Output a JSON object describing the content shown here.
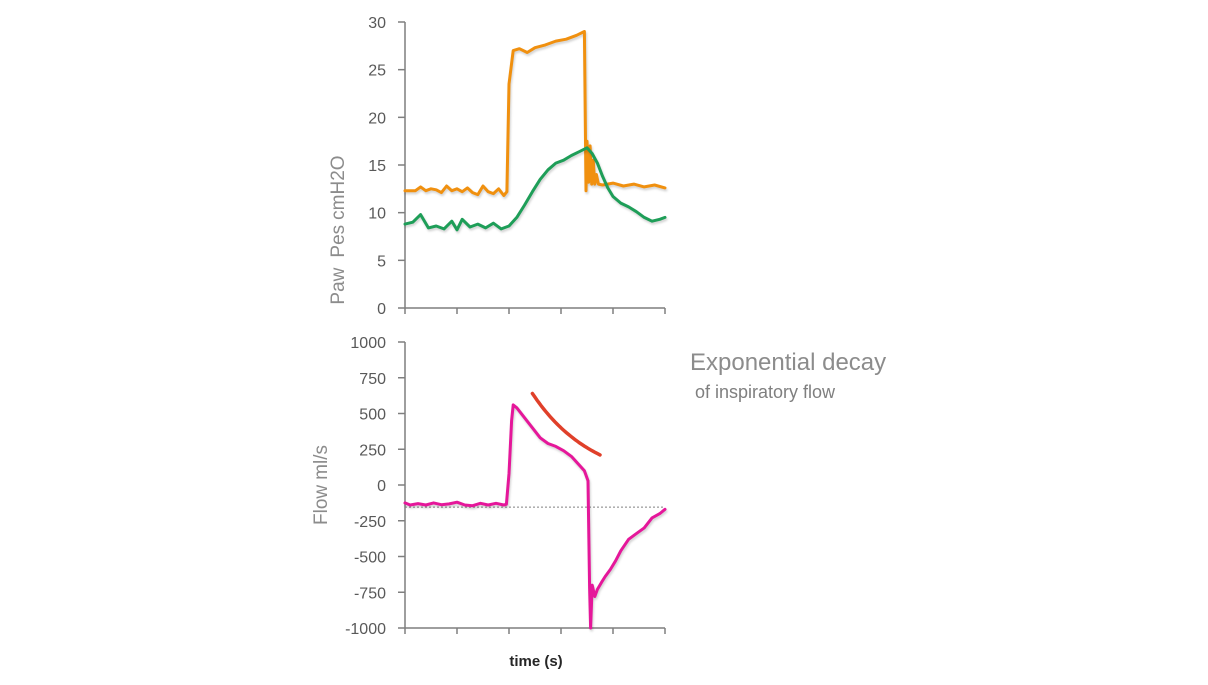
{
  "colors": {
    "paw": "#f0900f",
    "pes": "#1e9e58",
    "flow": "#e5179a",
    "decay": "#e0402a",
    "axis": "#7f7f7f",
    "baseline": "#808080"
  },
  "chart_data": [
    {
      "type": "line",
      "title": "",
      "ylabel": "Paw  Pes cmH2O",
      "ylabel_parts": [
        "Paw",
        "Pes",
        "cmH2O"
      ],
      "xlabel": "",
      "ylim": [
        0,
        30
      ],
      "yticks": [
        "0",
        "5",
        "10",
        "15",
        "20",
        "25",
        "30"
      ],
      "xlim": [
        0,
        5
      ],
      "x_tick_count": 5,
      "grid": false,
      "series": [
        {
          "key": "paw",
          "x": [
            0,
            0.2,
            0.3,
            0.4,
            0.5,
            0.6,
            0.7,
            0.8,
            0.9,
            1.0,
            1.1,
            1.2,
            1.3,
            1.4,
            1.5,
            1.6,
            1.7,
            1.8,
            1.9,
            1.96,
            2.0,
            2.08,
            2.2,
            2.35,
            2.5,
            2.7,
            2.9,
            3.1,
            3.3,
            3.45,
            3.48,
            3.5,
            3.53,
            3.56,
            3.59,
            3.62,
            3.65,
            3.68,
            3.72,
            3.8,
            4.0,
            4.2,
            4.4,
            4.6,
            4.8,
            5.0
          ],
          "y": [
            12.3,
            12.3,
            12.7,
            12.3,
            12.5,
            12.4,
            12.1,
            12.8,
            12.3,
            12.5,
            12.2,
            12.6,
            12.1,
            11.9,
            12.8,
            12.2,
            12.0,
            12.5,
            11.8,
            12.2,
            23.5,
            27.0,
            27.2,
            26.8,
            27.3,
            27.6,
            28.0,
            28.2,
            28.6,
            29.0,
            12.3,
            17.5,
            13.2,
            17.0,
            13.0,
            15.5,
            13.0,
            14.0,
            13.0,
            12.9,
            13.1,
            12.8,
            13.0,
            12.7,
            12.9,
            12.6
          ]
        },
        {
          "key": "pes",
          "x": [
            0,
            0.15,
            0.3,
            0.45,
            0.6,
            0.75,
            0.9,
            1.0,
            1.1,
            1.25,
            1.4,
            1.55,
            1.7,
            1.85,
            2.0,
            2.15,
            2.3,
            2.45,
            2.6,
            2.75,
            2.9,
            3.05,
            3.2,
            3.35,
            3.5,
            3.6,
            3.7,
            3.8,
            3.9,
            4.0,
            4.15,
            4.3,
            4.45,
            4.6,
            4.75,
            4.9,
            5.0
          ],
          "y": [
            8.8,
            9.0,
            9.8,
            8.4,
            8.6,
            8.3,
            9.1,
            8.2,
            9.3,
            8.5,
            8.8,
            8.4,
            8.9,
            8.3,
            8.6,
            9.5,
            10.8,
            12.2,
            13.5,
            14.5,
            15.2,
            15.5,
            16.0,
            16.4,
            16.8,
            16.2,
            15.2,
            13.8,
            12.6,
            11.7,
            11.0,
            10.6,
            10.1,
            9.5,
            9.1,
            9.3,
            9.5
          ]
        }
      ]
    },
    {
      "type": "line",
      "title": "",
      "ylabel": "Flow ml/s",
      "ylabel_parts": [
        "Flow",
        "ml/s"
      ],
      "xlabel": "time (s)",
      "ylim": [
        -1000,
        1000
      ],
      "yticks": [
        "1000",
        "750",
        "500",
        "250",
        "0",
        "-250",
        "-500",
        "-750",
        "-1000"
      ],
      "xlim": [
        0,
        5
      ],
      "x_tick_count": 5,
      "grid": false,
      "baseline": -155,
      "series": [
        {
          "key": "flow",
          "x": [
            0,
            0.1,
            0.25,
            0.4,
            0.55,
            0.7,
            0.85,
            1.0,
            1.15,
            1.3,
            1.45,
            1.6,
            1.75,
            1.9,
            1.95,
            2.0,
            2.05,
            2.08,
            2.15,
            2.3,
            2.45,
            2.6,
            2.75,
            2.9,
            3.05,
            3.2,
            3.35,
            3.45,
            3.52,
            3.55,
            3.57,
            3.6,
            3.65,
            3.7,
            3.78,
            3.85,
            3.95,
            4.05,
            4.15,
            4.3,
            4.45,
            4.6,
            4.75,
            4.9,
            5.0
          ],
          "y": [
            -125,
            -140,
            -130,
            -140,
            -125,
            -138,
            -132,
            -120,
            -140,
            -145,
            -128,
            -140,
            -128,
            -140,
            -135,
            80,
            450,
            560,
            540,
            470,
            400,
            330,
            290,
            270,
            240,
            200,
            140,
            100,
            30,
            -720,
            -1000,
            -700,
            -780,
            -730,
            -680,
            -640,
            -590,
            -530,
            -460,
            -380,
            -340,
            -300,
            -230,
            -200,
            -170
          ]
        }
      ]
    }
  ],
  "annotation": {
    "decay_curve": {
      "x": [
        0.5,
        3.75
      ],
      "y0": 640,
      "k": 0.45
    },
    "title": "Exponential decay",
    "subtitle": "of inspiratory flow"
  }
}
